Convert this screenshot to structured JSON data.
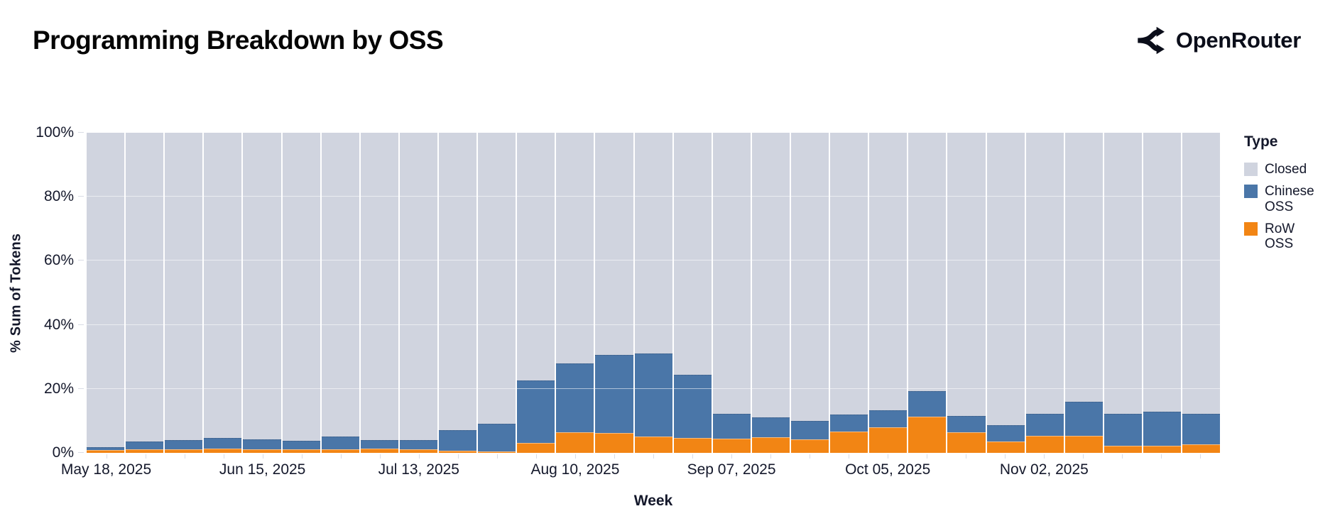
{
  "header": {
    "title": "Programming Breakdown by OSS",
    "brand": "OpenRouter"
  },
  "chart_data": {
    "type": "bar",
    "stacked": true,
    "normalized": "percent",
    "title": "Programming Breakdown by OSS",
    "xlabel": "Week",
    "ylabel": "% Sum of Tokens",
    "ylim": [
      0,
      100
    ],
    "grid": true,
    "legend_title": "Type",
    "legend_position": "right",
    "y_tick_values": [
      0,
      20,
      40,
      60,
      80,
      100
    ],
    "y_tick_labels": [
      "0%",
      "20%",
      "40%",
      "60%",
      "80%",
      "100%"
    ],
    "x_tick_label_every": 4,
    "x_tick_labels": [
      "May 18, 2025",
      "Jun 15, 2025",
      "Jul 13, 2025",
      "Aug 10, 2025",
      "Sep 07, 2025",
      "Oct 05, 2025",
      "Nov 02, 2025"
    ],
    "categories": [
      "May 18, 2025",
      "May 25, 2025",
      "Jun 01, 2025",
      "Jun 08, 2025",
      "Jun 15, 2025",
      "Jun 22, 2025",
      "Jun 29, 2025",
      "Jul 06, 2025",
      "Jul 13, 2025",
      "Jul 20, 2025",
      "Jul 27, 2025",
      "Aug 03, 2025",
      "Aug 10, 2025",
      "Aug 17, 2025",
      "Aug 24, 2025",
      "Aug 31, 2025",
      "Sep 07, 2025",
      "Sep 14, 2025",
      "Sep 21, 2025",
      "Sep 28, 2025",
      "Oct 05, 2025",
      "Oct 12, 2025",
      "Oct 19, 2025",
      "Oct 26, 2025",
      "Nov 02, 2025",
      "Nov 09, 2025",
      "Nov 16, 2025",
      "Nov 23, 2025",
      "Nov 30, 2025"
    ],
    "series": [
      {
        "name": "Closed",
        "color": "#d0d4df",
        "values": [
          98.3,
          96.4,
          96.1,
          95.4,
          95.7,
          96.3,
          94.9,
          96.0,
          95.9,
          92.8,
          90.9,
          77.3,
          72.1,
          69.5,
          69.0,
          75.6,
          87.7,
          89.0,
          90.0,
          88.0,
          86.7,
          80.7,
          88.4,
          91.4,
          87.8,
          84.0,
          87.8,
          87.1,
          87.8
        ]
      },
      {
        "name": "Chinese OSS",
        "color": "#4a76a8",
        "values": [
          0.8,
          2.5,
          2.8,
          3.3,
          3.2,
          2.7,
          4.0,
          2.7,
          2.9,
          6.5,
          8.6,
          19.6,
          21.5,
          24.2,
          25.9,
          19.7,
          7.8,
          6.1,
          5.7,
          5.4,
          5.4,
          7.9,
          5.2,
          5.1,
          6.8,
          10.6,
          10.0,
          10.7,
          9.6
        ]
      },
      {
        "name": "RoW OSS",
        "color": "#f28514",
        "values": [
          0.9,
          1.1,
          1.1,
          1.3,
          1.1,
          1.0,
          1.1,
          1.3,
          1.2,
          0.7,
          0.5,
          3.1,
          6.4,
          6.3,
          5.1,
          4.7,
          4.5,
          4.9,
          4.3,
          6.6,
          7.9,
          11.4,
          6.4,
          3.5,
          5.4,
          5.4,
          2.2,
          2.2,
          2.6
        ]
      }
    ]
  }
}
